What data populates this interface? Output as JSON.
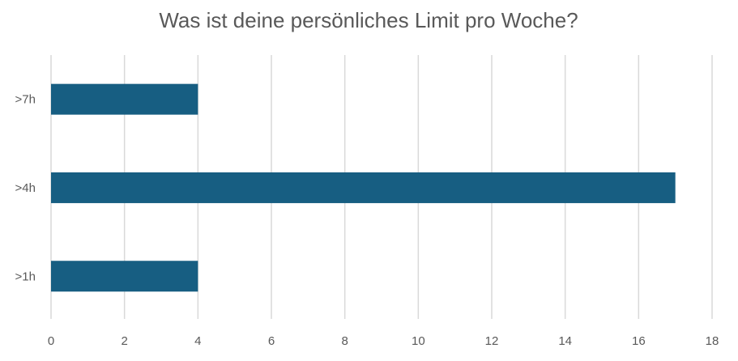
{
  "chart_data": {
    "type": "bar",
    "orientation": "horizontal",
    "title": "Was ist deine persönliches Limit pro Woche?",
    "categories": [
      ">7h",
      ">4h",
      ">1h"
    ],
    "values": [
      4,
      17,
      4
    ],
    "xlim": [
      0,
      18
    ],
    "x_ticks": [
      0,
      2,
      4,
      6,
      8,
      10,
      12,
      14,
      16,
      18
    ],
    "xlabel": "",
    "ylabel": "",
    "grid": "vertical",
    "legend": "none",
    "bar_color": "#175e82"
  }
}
